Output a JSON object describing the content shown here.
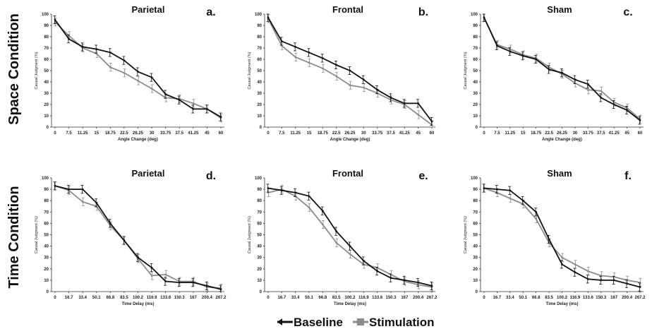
{
  "rows": [
    {
      "label": "Space Condition"
    },
    {
      "label": "Time Condition"
    }
  ],
  "legend": {
    "baseline": "Baseline",
    "stimulation": "Stimulation"
  },
  "colors": {
    "baseline": "#111111",
    "stimulation": "#8c8c8c"
  },
  "chart_data": [
    {
      "type": "line",
      "title": "Parietal",
      "letter": "a.",
      "xlabel": "Angle Change (deg)",
      "ylabel": "Causal Judgment (%)",
      "categories": [
        "0",
        "7.5",
        "11.25",
        "15",
        "18.75",
        "22.5",
        "26.25",
        "30",
        "33.75",
        "37.5",
        "41.25",
        "45",
        "60"
      ],
      "ylim": [
        0,
        100
      ],
      "yticks": [
        0,
        10,
        20,
        30,
        40,
        50,
        60,
        70,
        80,
        90,
        100
      ],
      "series": [
        {
          "name": "Baseline",
          "values": [
            95,
            78,
            71,
            69,
            66,
            59,
            49,
            44,
            29,
            24,
            16,
            16,
            9
          ]
        },
        {
          "name": "Stimulation",
          "values": [
            93,
            81,
            70,
            65,
            53,
            48,
            41,
            34,
            26,
            25,
            21,
            16,
            8
          ]
        }
      ]
    },
    {
      "type": "line",
      "title": "Frontal",
      "letter": "b.",
      "xlabel": "Angle Change (deg)",
      "ylabel": "Causal Judgment (%)",
      "categories": [
        "0",
        "7.5",
        "11.25",
        "15",
        "18.75",
        "22.5",
        "26.25",
        "30",
        "33.75",
        "37.5",
        "41.25",
        "45",
        "60"
      ],
      "ylim": [
        0,
        100
      ],
      "yticks": [
        0,
        10,
        20,
        30,
        40,
        50,
        60,
        70,
        80,
        90,
        100
      ],
      "series": [
        {
          "name": "Baseline",
          "values": [
            97,
            76,
            71,
            66,
            61,
            55,
            50,
            42,
            33,
            26,
            21,
            21,
            5
          ]
        },
        {
          "name": "Stimulation",
          "values": [
            96,
            72,
            62,
            57,
            52,
            45,
            37,
            35,
            30,
            24,
            20,
            11,
            2
          ]
        }
      ]
    },
    {
      "type": "line",
      "title": "Sham",
      "letter": "c.",
      "xlabel": "Angle Change (deg)",
      "ylabel": "Causal Judgment (%)",
      "categories": [
        "0",
        "7.5",
        "11.25",
        "15",
        "18.75",
        "22.5",
        "26.25",
        "30",
        "33.75",
        "37.5",
        "41.25",
        "45",
        "60"
      ],
      "ylim": [
        0,
        100
      ],
      "yticks": [
        0,
        10,
        20,
        30,
        40,
        50,
        60,
        70,
        80,
        90,
        100
      ],
      "series": [
        {
          "name": "Baseline",
          "values": [
            97,
            72,
            67,
            63,
            60,
            51,
            48,
            42,
            38,
            26,
            20,
            15,
            6
          ]
        },
        {
          "name": "Stimulation",
          "values": [
            97,
            73,
            69,
            64,
            61,
            53,
            47,
            39,
            33,
            32,
            22,
            17,
            7
          ]
        }
      ]
    },
    {
      "type": "line",
      "title": "Parietal",
      "letter": "d.",
      "xlabel": "Time Delay (ms)",
      "ylabel": "Causal Judgment (%)",
      "categories": [
        "0",
        "16.7",
        "33.4",
        "50.1",
        "66.8",
        "83.5",
        "100.2",
        "116.9",
        "133.6",
        "150.3",
        "167",
        "200.4",
        "267.2"
      ],
      "ylim": [
        0,
        100
      ],
      "yticks": [
        0,
        10,
        20,
        30,
        40,
        50,
        60,
        70,
        80,
        90,
        100
      ],
      "series": [
        {
          "name": "Baseline",
          "values": [
            93,
            90,
            90,
            78,
            60,
            45,
            30,
            21,
            9,
            8,
            8,
            5,
            2
          ]
        },
        {
          "name": "Stimulation",
          "values": [
            93,
            89,
            79,
            75,
            58,
            45,
            29,
            14,
            15,
            9,
            9,
            4,
            3
          ]
        }
      ]
    },
    {
      "type": "line",
      "title": "Frontal",
      "letter": "e.",
      "xlabel": "Time Delay (ms)",
      "ylabel": "Causal Judgment (%)",
      "categories": [
        "0",
        "16.7",
        "33.4",
        "50.1",
        "66.8",
        "83.5",
        "100.2",
        "116.9",
        "133.6",
        "150.3",
        "167",
        "200.4",
        "267.2"
      ],
      "ylim": [
        0,
        100
      ],
      "yticks": [
        0,
        10,
        20,
        30,
        40,
        50,
        60,
        70,
        80,
        90,
        100
      ],
      "series": [
        {
          "name": "Baseline",
          "values": [
            91,
            89,
            87,
            84,
            71,
            53,
            40,
            27,
            18,
            12,
            10,
            8,
            5
          ]
        },
        {
          "name": "Stimulation",
          "values": [
            87,
            90,
            84,
            74,
            59,
            43,
            33,
            24,
            21,
            15,
            9,
            6,
            4
          ]
        }
      ]
    },
    {
      "type": "line",
      "title": "Sham",
      "letter": "f.",
      "xlabel": "Time Delay (ms)",
      "ylabel": "Causal Judgment (%)",
      "categories": [
        "0",
        "16.7",
        "33.4",
        "50.1",
        "66.8",
        "83.5",
        "100.2",
        "116.9",
        "133.6",
        "150.3",
        "167",
        "200.4",
        "267.2"
      ],
      "ylim": [
        0,
        100
      ],
      "yticks": [
        0,
        10,
        20,
        30,
        40,
        50,
        60,
        70,
        80,
        90,
        100
      ],
      "series": [
        {
          "name": "Baseline",
          "values": [
            91,
            90,
            89,
            80,
            70,
            46,
            24,
            17,
            11,
            10,
            10,
            7,
            4
          ]
        },
        {
          "name": "Stimulation",
          "values": [
            91,
            87,
            82,
            77,
            64,
            43,
            30,
            24,
            18,
            14,
            13,
            10,
            8
          ]
        }
      ]
    }
  ]
}
